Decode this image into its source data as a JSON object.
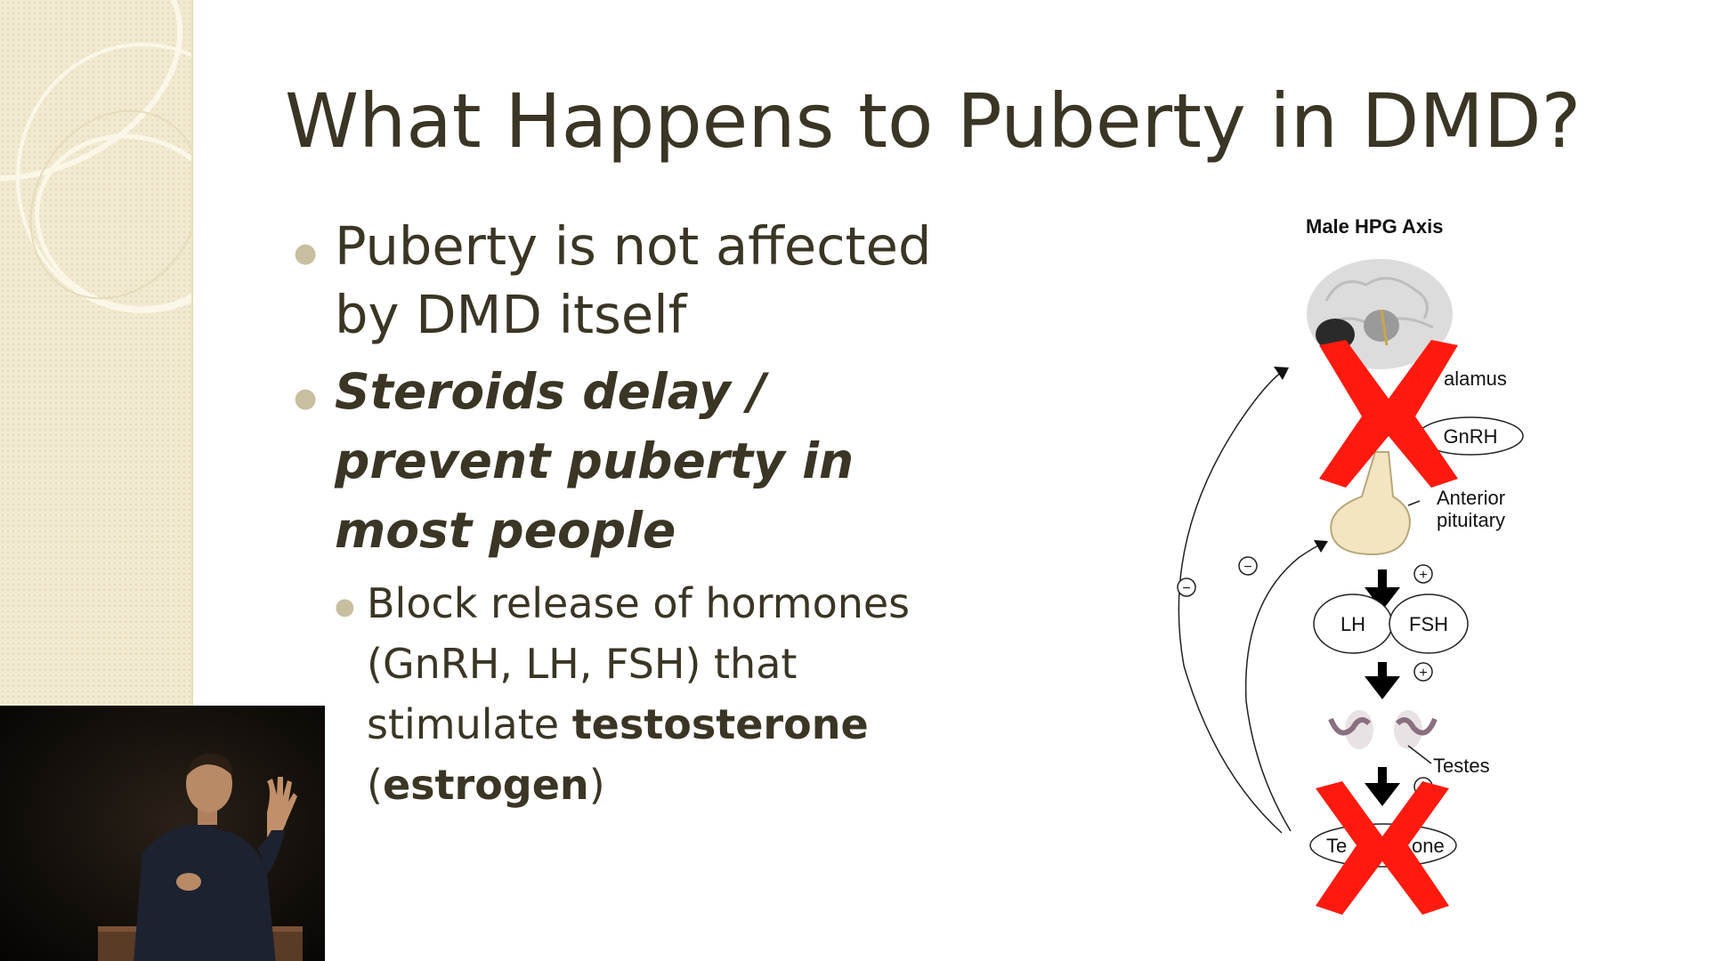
{
  "slide": {
    "title": "What Happens to Puberty in DMD?",
    "bullets": [
      {
        "text": "Puberty is not affected by DMD itself"
      },
      {
        "text": "Steroids delay / prevent puberty in most people"
      }
    ],
    "sub_bullet": {
      "text_before": "Block release of hormones (GnRH, LH, FSH) that stimulate ",
      "bold1": "testosterone",
      "space": " ",
      "open_paren": "(",
      "bold2": "estrogen",
      "close_paren": ")"
    }
  },
  "diagram": {
    "title": "Male HPG Axis",
    "hypothalamus_label": "alamus",
    "gnrh_label": "GnRH",
    "pituitary_label_1": "Anterior",
    "pituitary_label_2": "pituitary",
    "lh_label": "LH",
    "fsh_label": "FSH",
    "testes_label": "Testes",
    "testosterone_left": "Te",
    "testosterone_right": "one",
    "plus_sign": "+",
    "minus_sign": "−",
    "cross_color": "#ff1a0f"
  },
  "colors": {
    "text": "#3a3524",
    "bullet": "#c7bf9f",
    "side_panel": "#f1ead1"
  }
}
